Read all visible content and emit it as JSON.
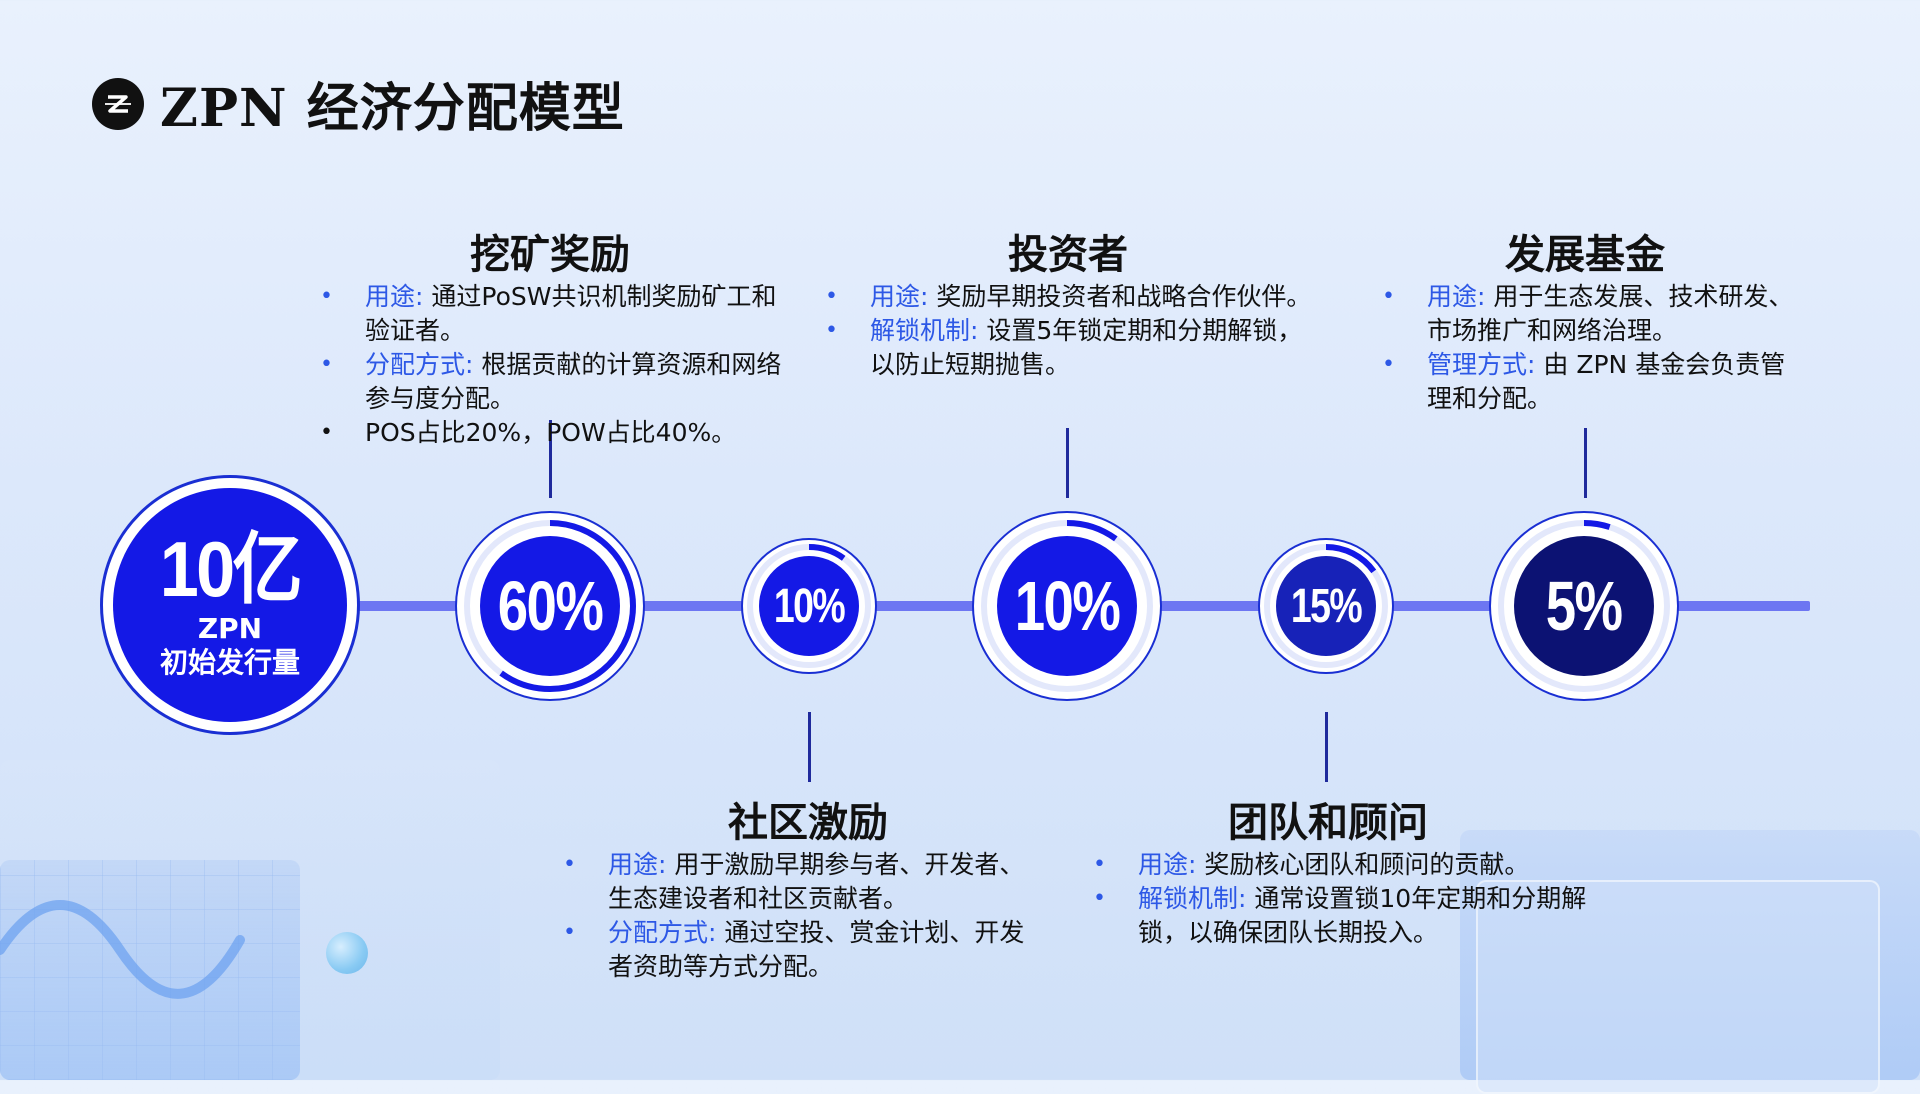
{
  "title": "ZPN 经济分配模型",
  "total": {
    "amount": "10亿",
    "unit": "ZPN",
    "label": "初始发行量"
  },
  "allocations": [
    {
      "name": "挖矿奖励",
      "percent_text": "60%",
      "percent": 60,
      "bullets": [
        {
          "key": "用途:",
          "text": "通过PoSW共识机制奖励矿工和验证者。"
        },
        {
          "key": "分配方式:",
          "text": "根据贡献的计算资源和网络参与度分配。"
        },
        {
          "key": "",
          "text": "POS占比20%，POW占比40%。"
        }
      ]
    },
    {
      "name": "社区激励",
      "percent_text": "10%",
      "percent": 10,
      "bullets": [
        {
          "key": "用途:",
          "text": "用于激励早期参与者、开发者、生态建设者和社区贡献者。"
        },
        {
          "key": "分配方式:",
          "text": "通过空投、赏金计划、开发者资助等方式分配。"
        }
      ]
    },
    {
      "name": "投资者",
      "percent_text": "10%",
      "percent": 10,
      "bullets": [
        {
          "key": "用途:",
          "text": "奖励早期投资者和战略合作伙伴。"
        },
        {
          "key": "解锁机制:",
          "text": "设置5年锁定期和分期解锁，以防止短期抛售。"
        }
      ]
    },
    {
      "name": "团队和顾问",
      "percent_text": "15%",
      "percent": 15,
      "bullets": [
        {
          "key": "用途:",
          "text": "奖励核心团队和顾问的贡献。"
        },
        {
          "key": "解锁机制:",
          "text": "通常设置锁10年定期和分期解锁，以确保团队长期投入。"
        }
      ]
    },
    {
      "name": "发展基金",
      "percent_text": "5%",
      "percent": 5,
      "bullets": [
        {
          "key": "用途:",
          "text": "用于生态发展、技术研发、市场推广和网络治理。"
        },
        {
          "key": "管理方式:",
          "text": "由 ZPN 基金会负责管理和分配。"
        }
      ]
    }
  ],
  "colors": {
    "primary": "#1419e6",
    "dark_node": "#0c1273",
    "accent_text": "#2d58e6",
    "line": "#6d76f2"
  }
}
